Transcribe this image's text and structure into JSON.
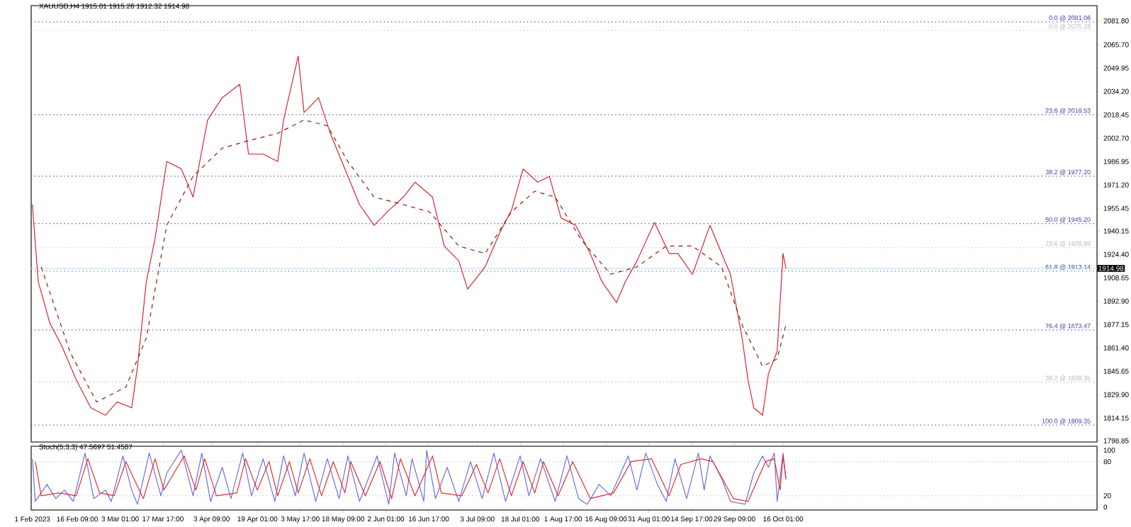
{
  "chart_data": [
    {
      "type": "line",
      "title": "XAUUSD,H4 1915.01 1915.26 1912.32 1914.98",
      "marker": "none",
      "tick_labels": "y",
      "xlim": [
        "2023-01-31T14:00",
        "2024-01-31T12:00"
      ],
      "xticks": [
        {
          "value": "2023-02-01T00:00",
          "label": null
        },
        {
          "value": "2023-02-16T09:00",
          "label": null
        },
        {
          "value": "2023-03-03T01:00",
          "label": null
        },
        {
          "value": "2023-03-17T17:00",
          "label": null
        },
        {
          "value": "2023-04-03T09:00",
          "label": null
        },
        {
          "value": "2023-04-19T01:00",
          "label": null
        },
        {
          "value": "2023-05-03T17:00",
          "label": null
        },
        {
          "value": "2023-05-18T09:00",
          "label": null
        },
        {
          "value": "2023-06-02T01:00",
          "label": null
        },
        {
          "value": "2023-06-16T17:00",
          "label": null
        },
        {
          "value": "2023-07-03T09:00",
          "label": null
        },
        {
          "value": "2023-07-18T01:00",
          "label": null
        },
        {
          "value": "2023-08-01T17:00",
          "label": null
        },
        {
          "value": "2023-08-16T09:00",
          "label": null
        },
        {
          "value": "2023-08-31T01:00",
          "label": null
        },
        {
          "value": "2023-09-14T17:00",
          "label": null
        },
        {
          "value": "2023-09-29T09:00",
          "label": null
        },
        {
          "value": "2023-10-16T01:00",
          "label": null
        }
      ],
      "ylim": [
        1798,
        2092
      ],
      "yticks": [
        {
          "value": 1798.85,
          "label": "1798.85"
        },
        {
          "value": 1814.15,
          "label": "1814.15"
        },
        {
          "value": 1829.9,
          "label": "1829.90"
        },
        {
          "value": 1845.65,
          "label": "1845.65"
        },
        {
          "value": 1861.4,
          "label": "1861.40"
        },
        {
          "value": 1877.15,
          "label": "1877.15"
        },
        {
          "value": 1892.9,
          "label": "1892.90"
        },
        {
          "value": 1908.65,
          "label": "1908.65"
        },
        {
          "value": 1924.4,
          "label": "1924.40"
        },
        {
          "value": 1940.15,
          "label": "1940.15"
        },
        {
          "value": 1955.45,
          "label": "1955.45"
        },
        {
          "value": 1971.2,
          "label": "1971.20"
        },
        {
          "value": 1986.95,
          "label": "1986.95"
        },
        {
          "value": 2002.7,
          "label": "2002.70"
        },
        {
          "value": 2018.45,
          "label": "2018.45"
        },
        {
          "value": 2034.2,
          "label": "2034.20"
        },
        {
          "value": 2049.95,
          "label": "2049.95"
        },
        {
          "value": 2065.7,
          "label": "2065.70"
        },
        {
          "value": 2081.8,
          "label": "2081.80"
        }
      ],
      "series": [
        {
          "color": "#d9262e",
          "line_style": "solid",
          "x": [
            "2023-02-01",
            "2023-02-03",
            "2023-02-07",
            "2023-02-11",
            "2023-02-16",
            "2023-02-21",
            "2023-02-26",
            "2023-03-02",
            "2023-03-07",
            "2023-03-09",
            "2023-03-12",
            "2023-03-15",
            "2023-03-19",
            "2023-03-24",
            "2023-03-28",
            "2023-04-02",
            "2023-04-07",
            "2023-04-13",
            "2023-04-16",
            "2023-04-21",
            "2023-04-26",
            "2023-04-28",
            "2023-05-03",
            "2023-05-05",
            "2023-05-10",
            "2023-05-14",
            "2023-05-19",
            "2023-05-24",
            "2023-05-29",
            "2023-06-03",
            "2023-06-08",
            "2023-06-12",
            "2023-06-18",
            "2023-06-22",
            "2023-06-27",
            "2023-06-30",
            "2023-07-06",
            "2023-07-11",
            "2023-07-15",
            "2023-07-19",
            "2023-07-24",
            "2023-07-28",
            "2023-08-01",
            "2023-08-06",
            "2023-08-11",
            "2023-08-15",
            "2023-08-20",
            "2023-08-23",
            "2023-08-27",
            "2023-09-02",
            "2023-09-07",
            "2023-09-10",
            "2023-09-15",
            "2023-09-21",
            "2023-09-25",
            "2023-09-28",
            "2023-10-02",
            "2023-10-04",
            "2023-10-06",
            "2023-10-09",
            "2023-10-11",
            "2023-10-14",
            "2023-10-16",
            "2023-10-17"
          ],
          "values": [
            1958,
            1906,
            1878,
            1863,
            1840,
            1821,
            1816,
            1825,
            1821,
            1849,
            1906,
            1935,
            1987,
            1982,
            1963,
            2015,
            2030,
            2039,
            1992,
            1992,
            1987,
            2015,
            2058,
            2020,
            2030,
            2006,
            1982,
            1958,
            1944,
            1954,
            1963,
            1973,
            1963,
            1930,
            1920,
            1901,
            1916,
            1939,
            1954,
            1982,
            1973,
            1977,
            1949,
            1944,
            1925,
            1906,
            1892,
            1906,
            1920,
            1946,
            1925,
            1925,
            1911,
            1944,
            1925,
            1911,
            1868,
            1840,
            1821,
            1816,
            1844,
            1859,
            1925,
            1915
          ]
        },
        {
          "color": "#8b1a1a",
          "line_style": "dashed",
          "x": [
            "2023-02-04",
            "2023-02-14",
            "2023-02-23",
            "2023-03-05",
            "2023-03-12",
            "2023-03-19",
            "2023-03-28",
            "2023-04-07",
            "2023-04-16",
            "2023-04-26",
            "2023-05-05",
            "2023-05-13",
            "2023-05-20",
            "2023-05-29",
            "2023-06-08",
            "2023-06-17",
            "2023-06-27",
            "2023-07-06",
            "2023-07-15",
            "2023-07-23",
            "2023-07-30",
            "2023-08-08",
            "2023-08-18",
            "2023-08-27",
            "2023-09-06",
            "2023-09-15",
            "2023-09-25",
            "2023-10-02",
            "2023-10-09",
            "2023-10-14",
            "2023-10-17"
          ],
          "values": [
            1916,
            1858,
            1825,
            1835,
            1868,
            1944,
            1977,
            1996,
            2001,
            2006,
            2015,
            2011,
            1987,
            1963,
            1958,
            1953,
            1930,
            1925,
            1953,
            1967,
            1963,
            1934,
            1911,
            1916,
            1930,
            1930,
            1916,
            1877,
            1849,
            1854,
            1877
          ]
        }
      ],
      "ref_lines": [
        {
          "axis": "y",
          "value": 2081.06,
          "label": "0.0 @ 2081.06",
          "color": "#3a3aa8",
          "line_style": "dotted"
        },
        {
          "axis": "y",
          "value": 2075.28,
          "label": "0.0 @ 2075.28",
          "color": "#b4b4b4",
          "line_style": "dotted"
        },
        {
          "axis": "y",
          "value": 2018.53,
          "label": "23.6 @ 2018.53",
          "color": "#3a3aa8",
          "line_style": "dotted"
        },
        {
          "axis": "y",
          "value": 1977.2,
          "label": "38.2 @ 1977.20",
          "color": "#3a3aa8",
          "line_style": "dotted"
        },
        {
          "axis": "y",
          "value": 1945.2,
          "label": "50.0 @ 1945.20",
          "color": "#3a3aa8",
          "line_style": "dotted"
        },
        {
          "axis": "y",
          "value": 1928.89,
          "label": "23.6 @ 1928.89",
          "color": "#b4b4b4",
          "line_style": "dotted"
        },
        {
          "axis": "y",
          "value": 1913.14,
          "label": "61.8 @ 1913.14",
          "color": "#3a3aa8",
          "line_style": "dotted"
        },
        {
          "axis": "y",
          "value": 1873.47,
          "label": "76.4 @ 1873.47",
          "color": "#3a3aa8",
          "line_style": "dotted"
        },
        {
          "axis": "y",
          "value": 1838.35,
          "label": "38.2 @ 1838.35",
          "color": "#b4b4b4",
          "line_style": "dotted"
        },
        {
          "axis": "y",
          "value": 1809.35,
          "label": "100.0 @ 1809.35",
          "color": "#3a3aa8",
          "line_style": "dotted"
        },
        {
          "axis": "y",
          "value": 1914.98,
          "label": "1914.98",
          "color": "#bfe6f0",
          "line_style": "solid"
        }
      ]
    },
    {
      "type": "line",
      "title": "Stoch(5,3,3) 47.5697 51.4587",
      "marker": "none",
      "xlim": [
        "2023-01-31T14:00",
        "2024-01-31T12:00"
      ],
      "xticks": [
        {
          "value": "2023-02-01T00:00",
          "label": "1 Feb 2023"
        },
        {
          "value": "2023-02-16T09:00",
          "label": "16 Feb 09:00"
        },
        {
          "value": "2023-03-03T01:00",
          "label": "3 Mar 01:00"
        },
        {
          "value": "2023-03-17T17:00",
          "label": "17 Mar 17:00"
        },
        {
          "value": "2023-04-03T09:00",
          "label": "3 Apr 09:00"
        },
        {
          "value": "2023-04-19T01:00",
          "label": "19 Apr 01:00"
        },
        {
          "value": "2023-05-03T17:00",
          "label": "3 May 17:00"
        },
        {
          "value": "2023-05-18T09:00",
          "label": "18 May 09:00"
        },
        {
          "value": "2023-06-02T01:00",
          "label": "2 Jun 01:00"
        },
        {
          "value": "2023-06-16T17:00",
          "label": "16 Jun 17:00"
        },
        {
          "value": "2023-07-03T09:00",
          "label": "3 Jul 09:00"
        },
        {
          "value": "2023-07-18T01:00",
          "label": "18 Jul 01:00"
        },
        {
          "value": "2023-08-01T17:00",
          "label": "1 Aug 17:00"
        },
        {
          "value": "2023-08-16T09:00",
          "label": "16 Aug 09:00"
        },
        {
          "value": "2023-08-31T01:00",
          "label": "31 Aug 01:00"
        },
        {
          "value": "2023-09-14T17:00",
          "label": "14 Sep 17:00"
        },
        {
          "value": "2023-09-29T09:00",
          "label": "29 Sep 09:00"
        },
        {
          "value": "2023-10-16T01:00",
          "label": "16 Oct 01:00"
        }
      ],
      "ylim": [
        -5,
        107
      ],
      "yticks": [
        0,
        20,
        80,
        100
      ],
      "series": [
        {
          "color": "#6f6fdc",
          "line_style": "solid",
          "x": [
            "2023-02-01",
            "2023-02-02",
            "2023-02-06",
            "2023-02-09",
            "2023-02-12",
            "2023-02-15",
            "2023-02-19",
            "2023-02-22",
            "2023-02-26",
            "2023-02-28",
            "2023-03-04",
            "2023-03-07",
            "2023-03-09",
            "2023-03-13",
            "2023-03-17",
            "2023-03-19",
            "2023-03-24",
            "2023-03-28",
            "2023-03-31",
            "2023-04-03",
            "2023-04-07",
            "2023-04-10",
            "2023-04-14",
            "2023-04-17",
            "2023-04-21",
            "2023-04-25",
            "2023-04-28",
            "2023-05-02",
            "2023-05-05",
            "2023-05-09",
            "2023-05-13",
            "2023-05-17",
            "2023-05-20",
            "2023-05-24",
            "2023-05-30",
            "2023-06-03",
            "2023-06-05",
            "2023-06-09",
            "2023-06-11",
            "2023-06-15",
            "2023-06-16",
            "2023-06-19",
            "2023-06-23",
            "2023-06-27",
            "2023-07-01",
            "2023-07-05",
            "2023-07-09",
            "2023-07-13",
            "2023-07-18",
            "2023-07-21",
            "2023-07-25",
            "2023-07-30",
            "2023-08-03",
            "2023-08-07",
            "2023-08-10",
            "2023-08-14",
            "2023-08-18",
            "2023-08-24",
            "2023-08-27",
            "2023-08-30",
            "2023-09-03",
            "2023-09-06",
            "2023-09-09",
            "2023-09-13",
            "2023-09-17",
            "2023-09-19",
            "2023-09-21",
            "2023-09-25",
            "2023-09-28",
            "2023-10-03",
            "2023-10-06",
            "2023-10-09",
            "2023-10-11",
            "2023-10-13",
            "2023-10-14",
            "2023-10-16",
            "2023-10-17"
          ],
          "values": [
            85,
            10,
            40,
            15,
            30,
            10,
            95,
            15,
            30,
            10,
            90,
            30,
            5,
            95,
            20,
            60,
            100,
            20,
            95,
            10,
            70,
            15,
            95,
            20,
            85,
            10,
            90,
            20,
            95,
            10,
            85,
            15,
            90,
            10,
            90,
            5,
            95,
            20,
            85,
            10,
            100,
            15,
            70,
            10,
            80,
            15,
            95,
            10,
            90,
            20,
            85,
            10,
            90,
            15,
            5,
            40,
            20,
            90,
            30,
            95,
            40,
            10,
            85,
            15,
            95,
            30,
            90,
            50,
            10,
            5,
            60,
            90,
            70,
            95,
            10,
            95,
            48
          ]
        },
        {
          "color": "#e03030",
          "line_style": "solid",
          "x": [
            "2023-02-02",
            "2023-02-04",
            "2023-02-10",
            "2023-02-16",
            "2023-02-20",
            "2023-02-24",
            "2023-03-01",
            "2023-03-05",
            "2023-03-11",
            "2023-03-15",
            "2023-03-18",
            "2023-03-25",
            "2023-03-29",
            "2023-04-01",
            "2023-04-05",
            "2023-04-12",
            "2023-04-15",
            "2023-04-19",
            "2023-04-23",
            "2023-04-26",
            "2023-04-30",
            "2023-05-03",
            "2023-05-07",
            "2023-05-11",
            "2023-05-15",
            "2023-05-19",
            "2023-05-21",
            "2023-05-26",
            "2023-05-31",
            "2023-06-04",
            "2023-06-07",
            "2023-06-12",
            "2023-06-18",
            "2023-06-21",
            "2023-06-28",
            "2023-07-03",
            "2023-07-07",
            "2023-07-11",
            "2023-07-15",
            "2023-07-19",
            "2023-07-23",
            "2023-07-26",
            "2023-07-31",
            "2023-08-05",
            "2023-08-11",
            "2023-08-19",
            "2023-08-25",
            "2023-09-01",
            "2023-09-07",
            "2023-09-11",
            "2023-09-18",
            "2023-09-22",
            "2023-09-29",
            "2023-10-04",
            "2023-10-10",
            "2023-10-13",
            "2023-10-15",
            "2023-10-16",
            "2023-10-17"
          ],
          "values": [
            80,
            20,
            25,
            20,
            85,
            25,
            20,
            80,
            15,
            85,
            30,
            90,
            30,
            85,
            20,
            25,
            85,
            30,
            80,
            20,
            80,
            25,
            85,
            20,
            80,
            25,
            80,
            20,
            80,
            15,
            85,
            20,
            90,
            25,
            20,
            75,
            25,
            85,
            20,
            80,
            25,
            80,
            20,
            80,
            15,
            25,
            80,
            85,
            20,
            75,
            85,
            80,
            15,
            10,
            80,
            85,
            30,
            90,
            51
          ]
        }
      ],
      "ref_lines": [
        {
          "axis": "y",
          "value": 20,
          "color": "#c0c0c0",
          "line_style": "dotted"
        },
        {
          "axis": "y",
          "value": 80,
          "color": "#c0c0c0",
          "line_style": "dotted"
        }
      ]
    }
  ]
}
